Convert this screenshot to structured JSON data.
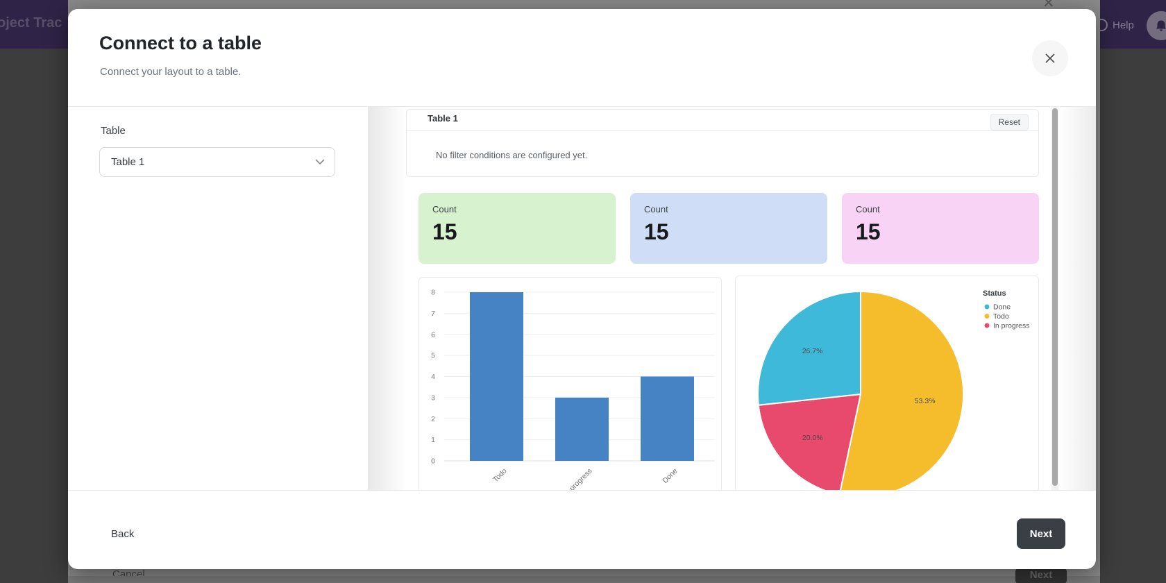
{
  "top_bar": {
    "logo_text": "oject Trac",
    "help_label": "Help",
    "brand_color": "#2f2347"
  },
  "behind_dialog": {
    "close_icon": "✕",
    "cancel_label": "Cancel",
    "next_label": "Next"
  },
  "dialog": {
    "title": "Connect to a table",
    "subtitle": "Connect your layout to a table.",
    "close_icon": "✕",
    "table_label": "Table",
    "table_select": {
      "value": "Table 1"
    },
    "preview": {
      "filter_card": {
        "title": "Table 1",
        "reset_label": "Reset",
        "empty_text": "No filter conditions are configured yet."
      },
      "count_cards": [
        {
          "label": "Count",
          "value": "15",
          "bg": "#d6f2cf"
        },
        {
          "label": "Count",
          "value": "15",
          "bg": "#cfdef6"
        },
        {
          "label": "Count",
          "value": "15",
          "bg": "#f8d3f5"
        }
      ]
    },
    "footer": {
      "back_label": "Back",
      "next_label": "Next"
    }
  },
  "chart_data": [
    {
      "type": "bar",
      "categories": [
        "Todo",
        "In progress",
        "Done"
      ],
      "values": [
        8,
        3,
        4
      ],
      "ylim": [
        0,
        8
      ],
      "ytick_step": 1,
      "bar_color": "#4583c5",
      "grid": true,
      "xlabel": "",
      "ylabel": ""
    },
    {
      "type": "pie",
      "legend_title": "Status",
      "start_angle_deg": 0,
      "clockwise": true,
      "legend_position": "top-right",
      "slices": [
        {
          "label": "Todo",
          "pct": 53.3,
          "display": "53.3%",
          "color": "#f5bd2c"
        },
        {
          "label": "In progress",
          "pct": 20.0,
          "display": "20.0%",
          "color": "#e84a6e"
        },
        {
          "label": "Done",
          "pct": 26.7,
          "display": "26.7%",
          "color": "#3fb9d9"
        }
      ],
      "legend": [
        {
          "label": "Done",
          "color": "#3fb9d9"
        },
        {
          "label": "Todo",
          "color": "#f5bd2c"
        },
        {
          "label": "In progress",
          "color": "#e84a6e"
        }
      ]
    }
  ]
}
